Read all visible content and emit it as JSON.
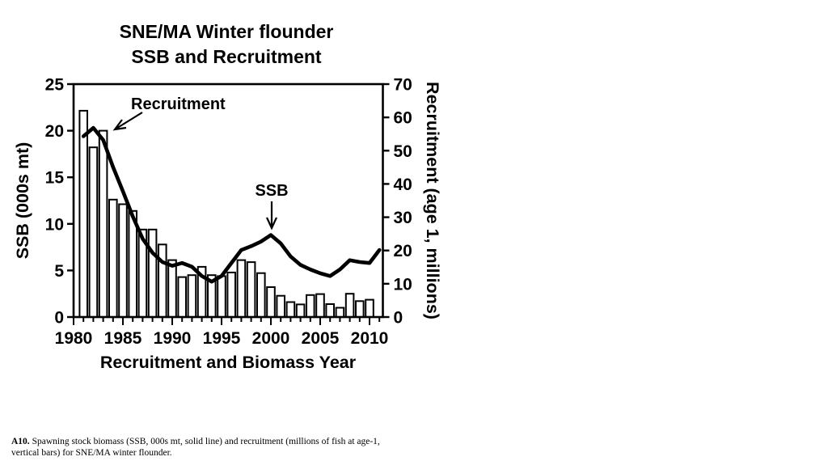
{
  "title": {
    "line1": "SNE/MA Winter flounder",
    "line2": "SSB and Recruitment"
  },
  "annotations": {
    "recruitment_label": "Recruitment",
    "ssb_label": "SSB"
  },
  "caption": {
    "prefix": "A10.",
    "text": " Spawning stock biomass (SSB, 000s mt, solid line) and recruitment (millions of fish at age-1, vertical bars) for SNE/MA winter flounder."
  },
  "chart_data": {
    "type": "bar+line",
    "title": "SNE/MA Winter flounder SSB and Recruitment",
    "x_axis": {
      "label": "Recruitment and Biomass Year",
      "range": [
        1980,
        2011
      ],
      "ticks": [
        1980,
        1985,
        1990,
        1995,
        2000,
        2005,
        2010
      ],
      "minor_tick_every_year": true
    },
    "left_axis": {
      "label": "SSB (000s mt)",
      "range": [
        0,
        25
      ],
      "ticks": [
        0,
        5,
        10,
        15,
        20,
        25
      ]
    },
    "right_axis": {
      "label": "Recruitment (age 1, millions)",
      "range": [
        0,
        70
      ],
      "ticks": [
        0,
        10,
        20,
        30,
        40,
        50,
        60,
        70
      ]
    },
    "series": [
      {
        "name": "Recruitment",
        "type": "bar",
        "axis": "right",
        "years": [
          1981,
          1982,
          1983,
          1984,
          1985,
          1986,
          1987,
          1988,
          1989,
          1990,
          1991,
          1992,
          1993,
          1994,
          1995,
          1996,
          1997,
          1998,
          1999,
          2000,
          2001,
          2002,
          2003,
          2004,
          2005,
          2006,
          2007,
          2008,
          2009,
          2010
        ],
        "values": [
          62,
          51,
          56,
          35.3,
          33.9,
          31.9,
          26.3,
          26.3,
          21.8,
          17.1,
          12.0,
          12.6,
          15.1,
          12.6,
          12.3,
          13.4,
          17.1,
          16.5,
          13.2,
          9.0,
          6.4,
          4.5,
          3.8,
          6.6,
          6.9,
          3.9,
          2.8,
          7.0,
          4.8,
          5.2
        ]
      },
      {
        "name": "SSB",
        "type": "line",
        "axis": "left",
        "years": [
          1981,
          1982,
          1983,
          1984,
          1985,
          1986,
          1987,
          1988,
          1989,
          1990,
          1991,
          1992,
          1993,
          1994,
          1995,
          1996,
          1997,
          1998,
          1999,
          2000,
          2001,
          2002,
          2003,
          2004,
          2005,
          2006,
          2007,
          2008,
          2009,
          2010,
          2011
        ],
        "values": [
          19.4,
          20.3,
          19.0,
          16.1,
          13.5,
          10.8,
          8.4,
          6.9,
          5.9,
          5.5,
          5.8,
          5.4,
          4.4,
          3.8,
          4.4,
          5.8,
          7.2,
          7.6,
          8.1,
          8.8,
          7.9,
          6.5,
          5.6,
          5.1,
          4.7,
          4.4,
          5.1,
          6.1,
          5.9,
          5.8,
          7.2
        ]
      }
    ],
    "legend": "none",
    "grid": false,
    "colors": {
      "background": "#ffffff",
      "bar_fill": "#ffffff",
      "bar_stroke": "#000000",
      "line": "#000000",
      "text": "#000000"
    }
  }
}
